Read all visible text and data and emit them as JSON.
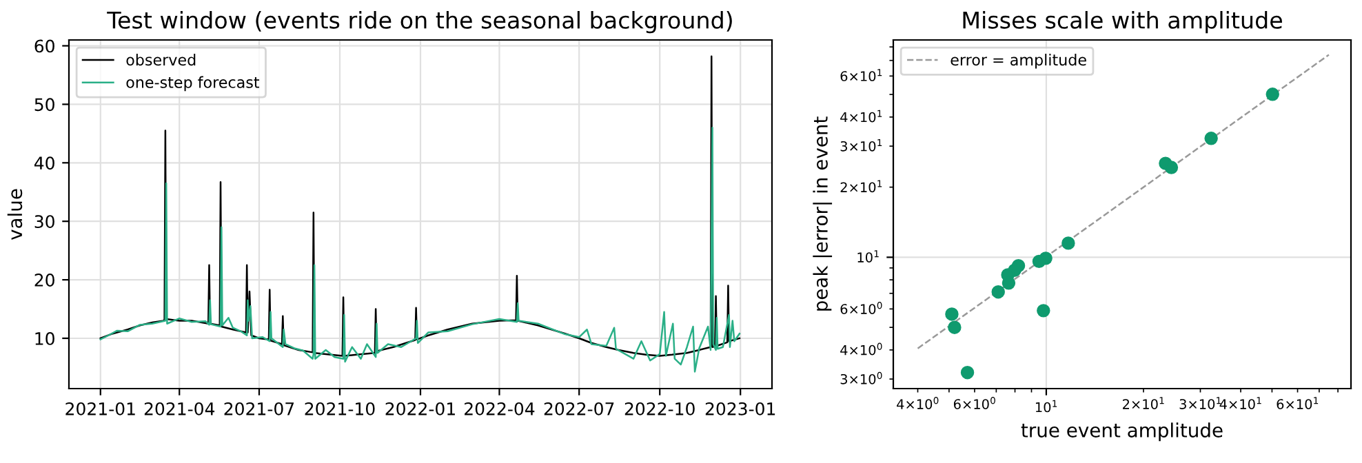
{
  "chart_data": [
    {
      "type": "line",
      "title": "Test window (events ride on the seasonal background)",
      "ylabel": "value",
      "xlim": [
        "2020-11-26",
        "2023-02-06"
      ],
      "ylim": [
        1.4,
        61
      ],
      "xticks": [
        {
          "value": "2021-01-01",
          "label": "2021-01"
        },
        {
          "value": "2021-04-01",
          "label": "2021-04"
        },
        {
          "value": "2021-07-01",
          "label": "2021-07"
        },
        {
          "value": "2021-10-01",
          "label": "2021-10"
        },
        {
          "value": "2022-01-01",
          "label": "2022-01"
        },
        {
          "value": "2022-04-01",
          "label": "2022-04"
        },
        {
          "value": "2022-07-01",
          "label": "2022-07"
        },
        {
          "value": "2022-10-01",
          "label": "2022-10"
        },
        {
          "value": "2023-01-01",
          "label": "2023-01"
        }
      ],
      "yticks": [
        10,
        20,
        30,
        40,
        50,
        60
      ],
      "grid": true,
      "legend": "top left",
      "marker": "none",
      "line_style": "solid",
      "series": [
        {
          "name": "observed",
          "color": "#000000",
          "x": [
            "2021-01-01",
            "2021-01-15",
            "2021-02-01",
            "2021-02-15",
            "2021-03-01",
            "2021-03-14",
            "2021-03-15",
            "2021-03-16",
            "2021-03-17",
            "2021-04-01",
            "2021-04-15",
            "2021-05-01",
            "2021-05-04",
            "2021-05-05",
            "2021-05-06",
            "2021-05-17",
            "2021-05-18",
            "2021-05-19",
            "2021-06-01",
            "2021-06-16",
            "2021-06-17",
            "2021-06-18",
            "2021-06-20",
            "2021-06-22",
            "2021-07-01",
            "2021-07-12",
            "2021-07-13",
            "2021-07-14",
            "2021-07-27",
            "2021-07-28",
            "2021-07-29",
            "2021-08-15",
            "2021-08-31",
            "2021-09-01",
            "2021-09-02",
            "2021-09-15",
            "2021-10-04",
            "2021-10-05",
            "2021-10-06",
            "2021-10-20",
            "2021-11-10",
            "2021-11-11",
            "2021-11-12",
            "2021-12-01",
            "2021-12-26",
            "2021-12-27",
            "2021-12-28",
            "2022-01-10",
            "2022-02-01",
            "2022-03-01",
            "2022-04-01",
            "2022-04-20",
            "2022-04-21",
            "2022-04-22",
            "2022-05-15",
            "2022-06-15",
            "2022-07-01",
            "2022-07-15",
            "2022-08-01",
            "2022-08-15",
            "2022-09-01",
            "2022-09-15",
            "2022-10-01",
            "2022-10-15",
            "2022-11-01",
            "2022-11-15",
            "2022-11-28",
            "2022-11-29",
            "2022-11-30",
            "2022-12-03",
            "2022-12-04",
            "2022-12-05",
            "2022-12-17",
            "2022-12-18",
            "2022-12-19",
            "2022-12-31"
          ],
          "values": [
            10,
            10.8,
            11.5,
            12.2,
            12.7,
            13,
            13.2,
            45.5,
            13.3,
            13,
            13,
            12.6,
            12.5,
            22.5,
            12.5,
            12.2,
            36.7,
            12,
            11.5,
            11,
            22.5,
            11,
            18,
            10.5,
            10,
            9.8,
            18.3,
            9.6,
            9,
            13.8,
            8.8,
            8,
            7.6,
            31.5,
            7.5,
            7.3,
            7,
            17,
            7,
            7.2,
            7.5,
            15,
            7.8,
            8.5,
            9.7,
            15.2,
            9.8,
            10.5,
            11.5,
            12.5,
            13,
            13.1,
            20.7,
            13,
            12.2,
            10.8,
            10,
            9.2,
            8.5,
            8,
            7.5,
            7.2,
            7,
            7.2,
            7.5,
            8,
            8.5,
            58.2,
            8.5,
            8.6,
            17.2,
            8.7,
            9.3,
            19,
            9.5,
            10
          ]
        },
        {
          "name": "one-step forecast",
          "color": "#2aaf87",
          "x": [
            "2021-01-01",
            "2021-01-10",
            "2021-01-20",
            "2021-02-01",
            "2021-02-15",
            "2021-03-01",
            "2021-03-16",
            "2021-03-17",
            "2021-03-18",
            "2021-04-01",
            "2021-04-15",
            "2021-05-01",
            "2021-05-05",
            "2021-05-06",
            "2021-05-07",
            "2021-05-18",
            "2021-05-19",
            "2021-05-20",
            "2021-05-27",
            "2021-06-01",
            "2021-06-10",
            "2021-06-17",
            "2021-06-18",
            "2021-06-19",
            "2021-06-21",
            "2021-06-23",
            "2021-07-05",
            "2021-07-13",
            "2021-07-14",
            "2021-07-15",
            "2021-07-28",
            "2021-07-29",
            "2021-07-31",
            "2021-08-10",
            "2021-08-20",
            "2021-08-31",
            "2021-09-01",
            "2021-09-02",
            "2021-09-03",
            "2021-09-15",
            "2021-09-25",
            "2021-10-05",
            "2021-10-06",
            "2021-10-07",
            "2021-10-15",
            "2021-10-25",
            "2021-11-01",
            "2021-11-11",
            "2021-11-12",
            "2021-11-13",
            "2021-11-25",
            "2021-12-10",
            "2021-12-27",
            "2021-12-28",
            "2021-12-29",
            "2022-01-10",
            "2022-02-01",
            "2022-03-01",
            "2022-04-01",
            "2022-04-21",
            "2022-04-22",
            "2022-04-23",
            "2022-05-15",
            "2022-06-15",
            "2022-07-01",
            "2022-07-10",
            "2022-07-15",
            "2022-08-01",
            "2022-08-10",
            "2022-08-12",
            "2022-09-01",
            "2022-09-10",
            "2022-09-20",
            "2022-10-01",
            "2022-10-06",
            "2022-10-08",
            "2022-10-16",
            "2022-10-18",
            "2022-10-25",
            "2022-11-01",
            "2022-11-08",
            "2022-11-10",
            "2022-11-15",
            "2022-11-25",
            "2022-11-28",
            "2022-11-30",
            "2022-12-01",
            "2022-12-04",
            "2022-12-05",
            "2022-12-06",
            "2022-12-12",
            "2022-12-19",
            "2022-12-20",
            "2022-12-23",
            "2022-12-25",
            "2022-12-31"
          ],
          "values": [
            9.8,
            10.5,
            11.3,
            11.2,
            12.3,
            12.5,
            13,
            36.5,
            12.5,
            13.4,
            12.8,
            12.9,
            12.3,
            16.5,
            12.4,
            12,
            29,
            12.2,
            13.5,
            11.8,
            11.2,
            10.5,
            16.5,
            13,
            15.5,
            10,
            10.2,
            9.5,
            14.5,
            10,
            8.5,
            11.5,
            9,
            8.3,
            7.9,
            6.5,
            7.3,
            22.5,
            6.5,
            8,
            6.8,
            6.5,
            14,
            6,
            8.5,
            6.5,
            9,
            6.8,
            12.5,
            7.5,
            9,
            8.5,
            10,
            13,
            9.2,
            11,
            11.2,
            12.4,
            13.3,
            12.8,
            16,
            13,
            12.5,
            10.7,
            10.2,
            11.5,
            9,
            8.7,
            11.8,
            8.2,
            6.5,
            9.5,
            6.2,
            7.3,
            14.5,
            7,
            12.5,
            6.5,
            5.5,
            8.5,
            12,
            4.3,
            8.3,
            12,
            8,
            46,
            9,
            8,
            13.5,
            8.2,
            8.5,
            14,
            8.5,
            13,
            9.5,
            10.8
          ]
        }
      ]
    },
    {
      "type": "scatter",
      "title": "Misses scale with amplitude",
      "xlabel": "true event amplitude",
      "ylabel": "peak |error| in event",
      "log": "xy",
      "xlim": [
        3.36,
        87.8
      ],
      "ylim": [
        2.73,
        85.7
      ],
      "xticks": [
        {
          "value": 4,
          "label": "4×10$^{0}$"
        },
        {
          "value": 5,
          "label": null
        },
        {
          "value": 6,
          "label": "6×10$^{0}$"
        },
        {
          "value": 7,
          "label": null
        },
        {
          "value": 8,
          "label": null
        },
        {
          "value": 9,
          "label": null
        },
        {
          "value": 10,
          "label": "10$^{1}$"
        },
        {
          "value": 20,
          "label": "2×10$^{1}$"
        },
        {
          "value": 30,
          "label": "3×10$^{1}$"
        },
        {
          "value": 40,
          "label": "4×10$^{1}$"
        },
        {
          "value": 50,
          "label": null
        },
        {
          "value": 60,
          "label": "6×10$^{1}$"
        },
        {
          "value": 70,
          "label": null
        },
        {
          "value": 80,
          "label": null
        }
      ],
      "yticks": [
        {
          "value": 3,
          "label": "3×10$^{0}$"
        },
        {
          "value": 4,
          "label": "4×10$^{0}$"
        },
        {
          "value": 5,
          "label": null
        },
        {
          "value": 6,
          "label": "6×10$^{0}$"
        },
        {
          "value": 7,
          "label": null
        },
        {
          "value": 8,
          "label": null
        },
        {
          "value": 9,
          "label": null
        },
        {
          "value": 10,
          "label": "10$^{1}$"
        },
        {
          "value": 20,
          "label": "2×10$^{1}$"
        },
        {
          "value": 30,
          "label": "3×10$^{1}$"
        },
        {
          "value": 40,
          "label": "4×10$^{1}$"
        },
        {
          "value": 50,
          "label": null
        },
        {
          "value": 60,
          "label": "6×10$^{1}$"
        },
        {
          "value": 70,
          "label": null
        },
        {
          "value": 80,
          "label": null
        }
      ],
      "grid": true,
      "legend": "top left",
      "marker": "circle",
      "series": [
        {
          "type": "line",
          "name": "error = amplitude",
          "color": "#999999",
          "line_style": "dashed",
          "marker": "none",
          "x": [
            4,
            75
          ],
          "values": [
            4.06,
            74
          ]
        },
        {
          "color": "#0f9a6e",
          "x": [
            50.2,
            32.4,
            23.4,
            24.4,
            11.7,
            9.96,
            9.5,
            8.2,
            7.98,
            7.6,
            7.65,
            7.1,
            9.8,
            5.1,
            5.2,
            5.7
          ],
          "values": [
            50.1,
            32.4,
            25.3,
            24.3,
            11.5,
            9.9,
            9.6,
            9.2,
            8.8,
            8.4,
            7.75,
            7.1,
            5.9,
            5.7,
            5.0,
            3.2
          ]
        }
      ]
    }
  ]
}
